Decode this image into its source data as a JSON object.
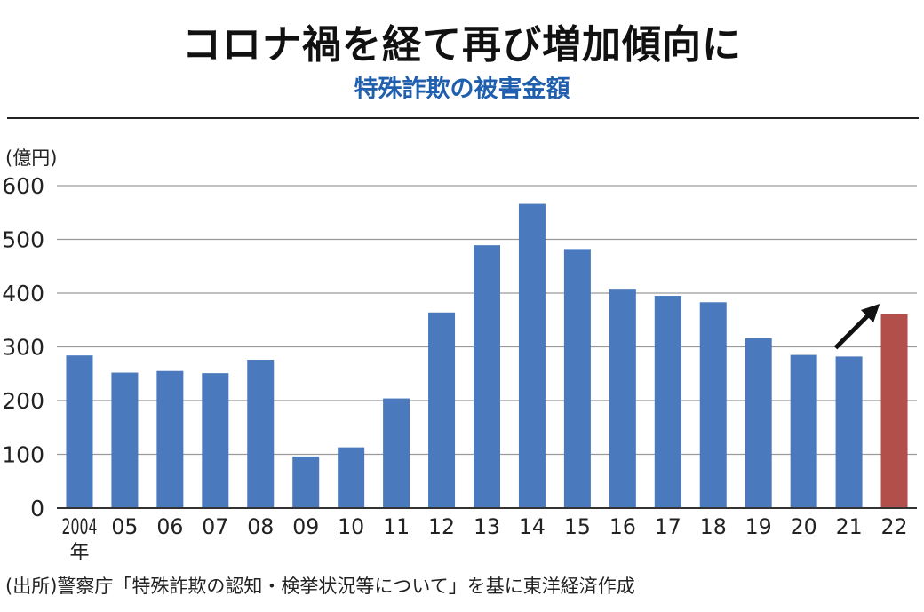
{
  "header": {
    "title": "コロナ禍を経て再び増加傾向に",
    "subtitle": "特殊詐欺の被害金額"
  },
  "source_note": "(出所)警察庁「特殊詐欺の認知・検挙状況等について」を基に東洋経済作成",
  "chart_data": {
    "type": "bar",
    "title": "特殊詐欺の被害金額",
    "ylabel": "(億円)",
    "xlabel": "",
    "ylim": [
      0,
      600
    ],
    "yticks": [
      0,
      100,
      200,
      300,
      400,
      500,
      600
    ],
    "grid": true,
    "categories": [
      "2004",
      "05",
      "06",
      "07",
      "08",
      "09",
      "10",
      "11",
      "12",
      "13",
      "14",
      "15",
      "16",
      "17",
      "18",
      "19",
      "20",
      "21",
      "22"
    ],
    "first_category_suffix": "年",
    "values": [
      284,
      252,
      255,
      251,
      276,
      96,
      113,
      204,
      364,
      489,
      566,
      482,
      408,
      395,
      383,
      316,
      285,
      282,
      361
    ],
    "colors": {
      "default": "#4a7abd",
      "highlight": "#b34f4b",
      "grid": "#9a9a9a",
      "axis": "#333333",
      "arrow": "#111111"
    },
    "highlight_category": "22",
    "annotation": "arrow pointing up toward the 2022 bar"
  }
}
